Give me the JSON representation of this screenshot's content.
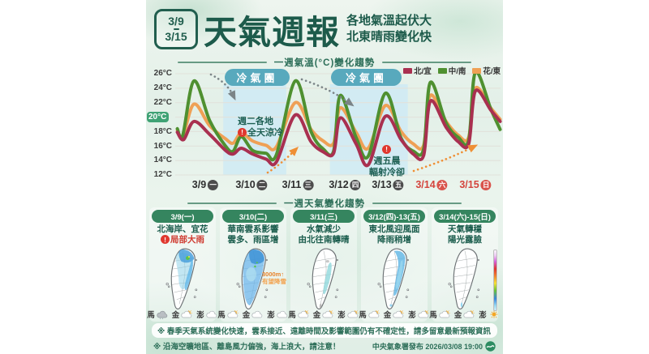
{
  "header": {
    "date_start": "3/9",
    "date_end": "3/15",
    "title": "天氣週報",
    "subtitle_line1": "各地氣溫起伏大",
    "subtitle_line2": "北東晴雨變化快"
  },
  "chart_section_title": "一週氣溫(°C)變化趨勢",
  "panels_section_title": "一週天氣變化趨勢",
  "chart_data": {
    "type": "line",
    "title": "一週氣溫(°C)變化趨勢",
    "ylabel": "°C",
    "ylim": [
      12,
      26
    ],
    "grid": true,
    "legend_position": "top-right",
    "yticks": [
      {
        "label": "26°C"
      },
      {
        "label": "24°C"
      },
      {
        "label": "22°C"
      },
      {
        "label": "20°C"
      },
      {
        "label": "18°C"
      },
      {
        "label": "16°C"
      },
      {
        "label": "14°C"
      },
      {
        "label": "12°C"
      }
    ],
    "highlight_ytick": "20°C",
    "x_ticks": [
      {
        "date": "3/9",
        "weekday": "一",
        "weekend": false
      },
      {
        "date": "3/10",
        "weekday": "二",
        "weekend": false
      },
      {
        "date": "3/11",
        "weekday": "三",
        "weekend": false
      },
      {
        "date": "3/12",
        "weekday": "四",
        "weekend": false
      },
      {
        "date": "3/13",
        "weekday": "五",
        "weekend": false
      },
      {
        "date": "3/14",
        "weekday": "六",
        "weekend": true
      },
      {
        "date": "3/15",
        "weekday": "日",
        "weekend": true
      }
    ],
    "cold_air_label": "冷氣團",
    "cold_air_bands_days": [
      [
        0.4,
        1.8
      ],
      [
        2.77,
        4.5
      ]
    ],
    "annotation1_line1": "週二各地",
    "annotation1_line2": "全天涼冷",
    "annotation2_line1": "週五晨",
    "annotation2_line2": "輻射冷卻",
    "series": [
      {
        "name": "北/宜",
        "color": "#a93050",
        "points": [
          [
            -0.62,
            17.9
          ],
          [
            -0.48,
            16.9
          ],
          [
            -0.25,
            19.4
          ],
          [
            0.1,
            17.6
          ],
          [
            0.45,
            15.4
          ],
          [
            0.62,
            14.9
          ],
          [
            0.8,
            15.7
          ],
          [
            1.05,
            14.9
          ],
          [
            1.35,
            14.2
          ],
          [
            1.58,
            13.8
          ],
          [
            2,
            20.3
          ],
          [
            2.35,
            16.6
          ],
          [
            2.62,
            15.2
          ],
          [
            2.85,
            15.0
          ],
          [
            3,
            19.9
          ],
          [
            3.35,
            16.3
          ],
          [
            3.62,
            13.4
          ],
          [
            4,
            20.1
          ],
          [
            4.35,
            16.9
          ],
          [
            4.62,
            14.9
          ],
          [
            4.85,
            14.7
          ],
          [
            5,
            22.2
          ],
          [
            5.35,
            18.6
          ],
          [
            5.62,
            16.6
          ],
          [
            5.85,
            16.3
          ],
          [
            6,
            23.6
          ],
          [
            6.35,
            20.9
          ],
          [
            6.55,
            19.4
          ]
        ]
      },
      {
        "name": "中/南",
        "color": "#4f9030",
        "points": [
          [
            -0.62,
            18.4
          ],
          [
            -0.5,
            17.5
          ],
          [
            -0.25,
            25.0
          ],
          [
            0.1,
            19.5
          ],
          [
            0.45,
            16.0
          ],
          [
            0.62,
            15.3
          ],
          [
            0.8,
            17.3
          ],
          [
            1.05,
            15.4
          ],
          [
            1.35,
            15.0
          ],
          [
            1.58,
            14.8
          ],
          [
            2,
            25.0
          ],
          [
            2.35,
            18.0
          ],
          [
            2.62,
            15.6
          ],
          [
            2.85,
            15.3
          ],
          [
            3,
            23.0
          ],
          [
            3.35,
            17.2
          ],
          [
            3.62,
            14.6
          ],
          [
            4,
            23.3
          ],
          [
            4.35,
            17.1
          ],
          [
            4.62,
            15.3
          ],
          [
            4.85,
            15.6
          ],
          [
            5,
            24.8
          ],
          [
            5.35,
            19.2
          ],
          [
            5.62,
            17.2
          ],
          [
            5.85,
            16.8
          ],
          [
            6,
            26.2
          ],
          [
            6.35,
            21.0
          ],
          [
            6.55,
            18.3
          ]
        ]
      },
      {
        "name": "花/東",
        "color": "#efa055",
        "points": [
          [
            -0.62,
            18.2
          ],
          [
            -0.5,
            17.3
          ],
          [
            -0.25,
            21.8
          ],
          [
            0.1,
            18.8
          ],
          [
            0.45,
            17.0
          ],
          [
            0.62,
            16.4
          ],
          [
            0.8,
            17.8
          ],
          [
            1.05,
            16.7
          ],
          [
            1.35,
            16.1
          ],
          [
            1.58,
            15.9
          ],
          [
            2,
            22.0
          ],
          [
            2.35,
            18.3
          ],
          [
            2.62,
            16.7
          ],
          [
            2.85,
            16.4
          ],
          [
            3,
            21.3
          ],
          [
            3.35,
            17.9
          ],
          [
            3.62,
            15.7
          ],
          [
            4,
            21.6
          ],
          [
            4.35,
            18.0
          ],
          [
            4.62,
            16.3
          ],
          [
            4.85,
            16.1
          ],
          [
            5,
            23.0
          ],
          [
            5.35,
            19.4
          ],
          [
            5.62,
            17.5
          ],
          [
            5.85,
            17.2
          ],
          [
            6,
            24.0
          ],
          [
            6.35,
            21.2
          ],
          [
            6.55,
            19.7
          ]
        ]
      }
    ]
  },
  "panels": [
    {
      "header": "3/9(一)",
      "line1": "北海岸、宜花",
      "line2": "局部大雨",
      "islands": [
        {
          "name": "馬"
        },
        {
          "name": "金"
        },
        {
          "name": "澎"
        }
      ]
    },
    {
      "header": "3/10(二)",
      "line1": "華南雲系影響",
      "line2": "雲多、雨區增",
      "note_line1": "3000m↑",
      "note_line2": "有望降雪",
      "islands": [
        {
          "name": "馬"
        },
        {
          "name": "金"
        },
        {
          "name": "澎"
        }
      ]
    },
    {
      "header": "3/11(三)",
      "line1": "水氣減少",
      "line2": "由北往南轉晴",
      "islands": [
        {
          "name": "馬"
        },
        {
          "name": "金"
        },
        {
          "name": "澎"
        }
      ]
    },
    {
      "header": "3/12(四)-13(五)",
      "line1": "東北風迎風面",
      "line2": "降雨稍增",
      "islands": [
        {
          "name": "馬"
        },
        {
          "name": "金"
        },
        {
          "name": "澎"
        }
      ]
    },
    {
      "header": "3/14(六)-15(日)",
      "line1": "天氣轉穩",
      "line2": "陽光露臉",
      "islands": [
        {
          "name": "馬"
        },
        {
          "name": "金"
        },
        {
          "name": "澎"
        }
      ]
    }
  ],
  "footer": {
    "note1": "※ 春季天氣系統變化快速，雲系接近、遠離時間及影響範圍仍有不確定性，請多留意最新預報資訊",
    "note2": "※ 沿海空曠地區、離島風力偏強，海上浪大，請注意！",
    "publisher": "中央氣象署發布 2026/03/08 19:00"
  }
}
